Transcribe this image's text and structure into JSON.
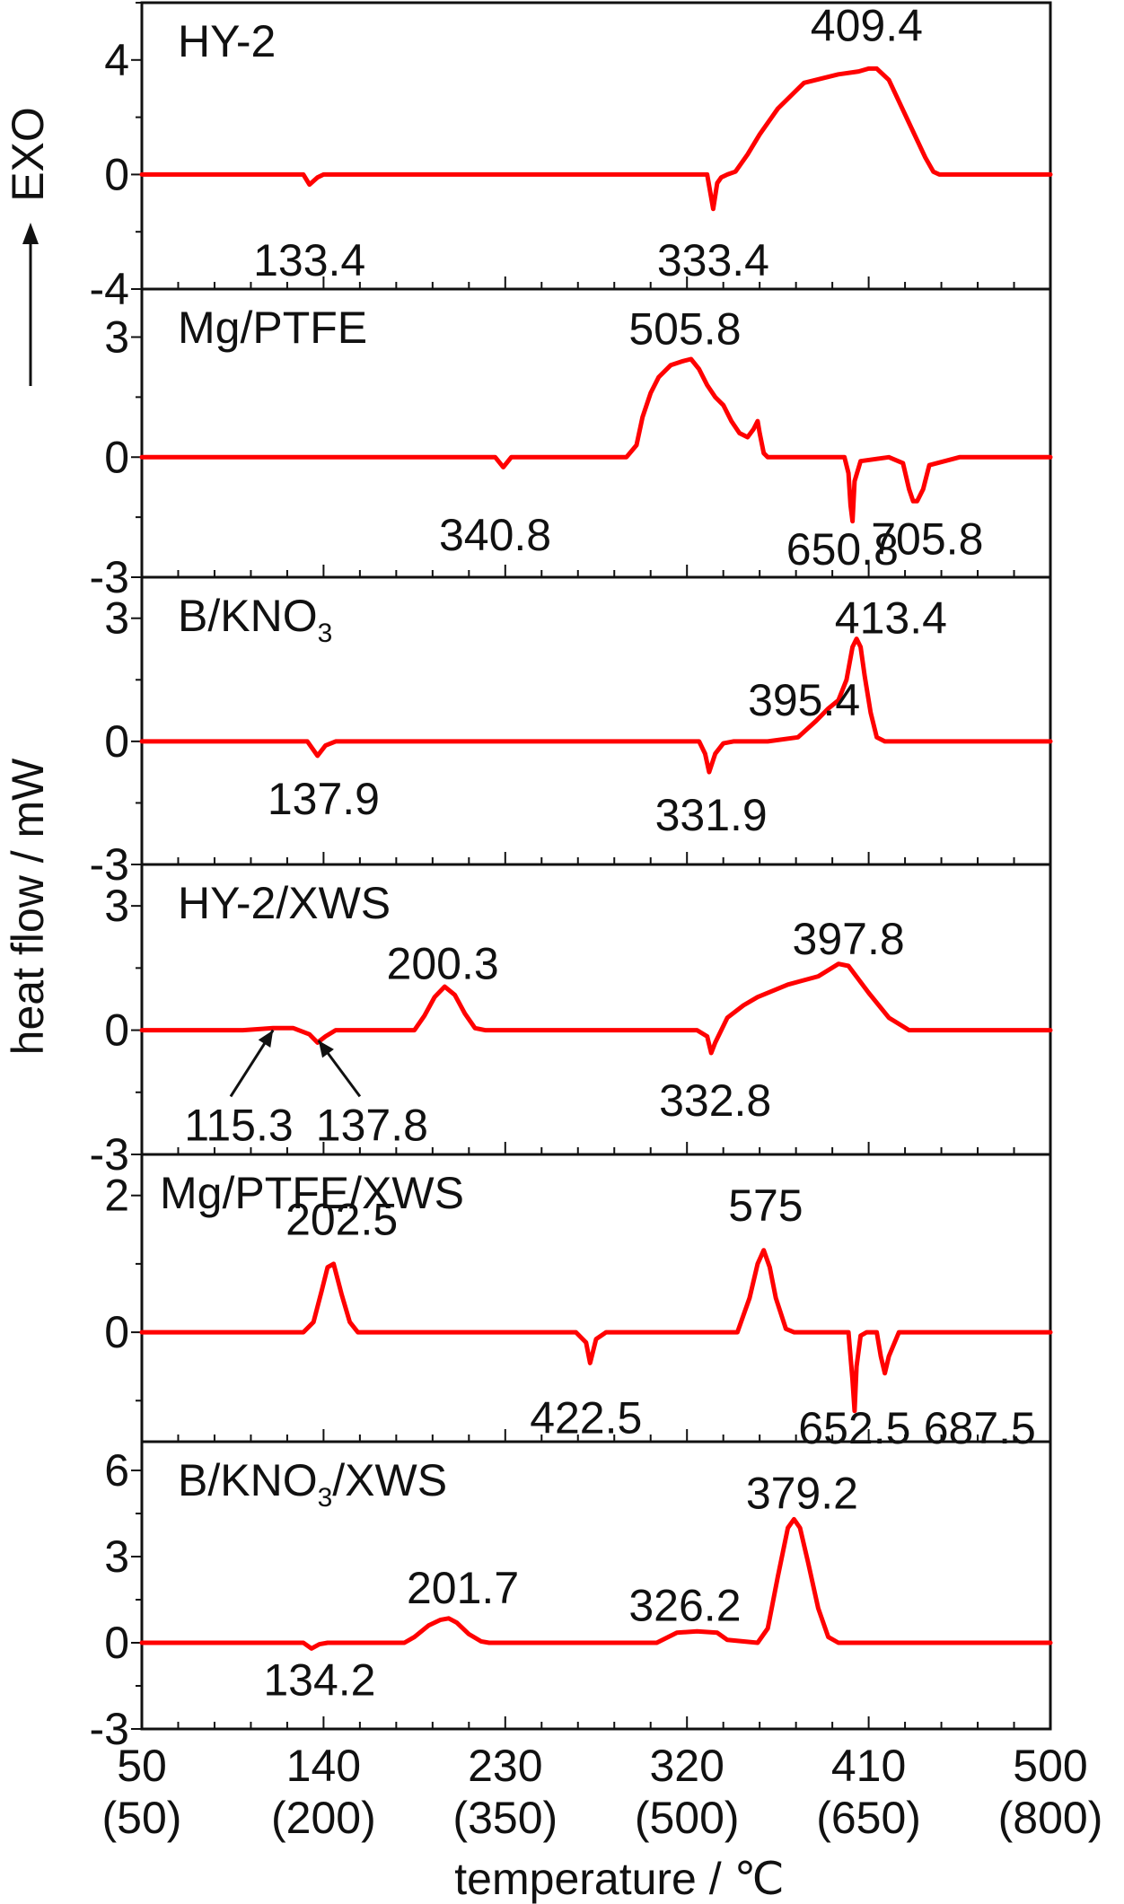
{
  "chart_data": {
    "type": "line",
    "xlabel": "temperature / ℃",
    "ylabel": "heat flow / mW",
    "y_annotation": "EXO",
    "x_ticks": [
      {
        "top": "50",
        "bottom": "(50)"
      },
      {
        "top": "140",
        "bottom": "(200)"
      },
      {
        "top": "230",
        "bottom": "(350)"
      },
      {
        "top": "320",
        "bottom": "(500)"
      },
      {
        "top": "410",
        "bottom": "(650)"
      },
      {
        "top": "500",
        "bottom": "(800)"
      }
    ],
    "xlim": [
      50,
      500
    ],
    "grid": false,
    "line_color": "#ff0000",
    "panels": [
      {
        "name": "HY-2",
        "ylim": [
          -4,
          6
        ],
        "yticks": [
          "4",
          "0",
          "-4"
        ],
        "ytick_values": [
          4,
          0,
          -4
        ],
        "series": {
          "x": [
            50,
            130,
            133,
            137,
            140,
            180,
            250,
            300,
            320,
            327,
            330,
            333,
            335,
            337,
            340,
            344,
            346,
            350,
            356,
            365,
            378,
            395,
            405,
            410,
            414,
            420,
            430,
            438,
            442,
            445,
            460,
            500
          ],
          "y": [
            0,
            0,
            -0.35,
            -0.1,
            0,
            0,
            0,
            0,
            0,
            0,
            0,
            -1.2,
            -0.3,
            -0.1,
            0,
            0.1,
            0.3,
            0.7,
            1.4,
            2.3,
            3.2,
            3.5,
            3.6,
            3.7,
            3.7,
            3.3,
            1.8,
            0.6,
            0.1,
            0,
            0,
            0
          ]
        },
        "labels": [
          {
            "text": "133.4",
            "x": 133,
            "y": -3.0
          },
          {
            "text": "333.4",
            "x": 333,
            "y": -3.0
          },
          {
            "text": "409.4",
            "x": 409,
            "y": 5.2
          }
        ]
      },
      {
        "name": "Mg/PTFE",
        "ylim": [
          -3,
          4.2
        ],
        "yticks": [
          "3",
          "0",
          "-3"
        ],
        "ytick_values": [
          3,
          0,
          -3
        ],
        "series": {
          "x": [
            50,
            180,
            225,
            229,
            233,
            240,
            290,
            295,
            298,
            302,
            306,
            312,
            318,
            322,
            326,
            330,
            334,
            338,
            342,
            346,
            350,
            353,
            355,
            356,
            358,
            360,
            398,
            400,
            401,
            402,
            403,
            406,
            420,
            427,
            430,
            432,
            434,
            437,
            440,
            455,
            500
          ],
          "y": [
            0,
            0,
            0,
            -0.25,
            0,
            0,
            0,
            0.3,
            1.0,
            1.6,
            2.0,
            2.3,
            2.4,
            2.45,
            2.2,
            1.8,
            1.5,
            1.3,
            0.9,
            0.6,
            0.5,
            0.7,
            0.9,
            0.6,
            0.1,
            0,
            0,
            -0.4,
            -1.2,
            -1.6,
            -0.6,
            -0.1,
            0,
            -0.15,
            -0.8,
            -1.1,
            -1.1,
            -0.8,
            -0.2,
            0,
            0
          ]
        },
        "labels": [
          {
            "text": "340.8",
            "x": 225,
            "y": -1.95
          },
          {
            "text": "505.8",
            "x": 319,
            "y": 3.2
          },
          {
            "text": "650.8",
            "x": 397,
            "y": -2.3
          },
          {
            "text": "705.8",
            "x": 439,
            "y": -2.05
          }
        ]
      },
      {
        "name": "B/KNO",
        "name_subscript": "3",
        "ylim": [
          -3,
          4
        ],
        "yticks": [
          "3",
          "0",
          "-3"
        ],
        "ytick_values": [
          3,
          0,
          -3
        ],
        "series": {
          "x": [
            50,
            132,
            137,
            141,
            146,
            200,
            300,
            320,
            326,
            329,
            331,
            334,
            338,
            343,
            360,
            375,
            384,
            390,
            395,
            399,
            402,
            404,
            406,
            408,
            411,
            414,
            418,
            440,
            500
          ],
          "y": [
            0,
            0,
            -0.35,
            -0.1,
            0,
            0,
            0,
            0,
            0,
            -0.3,
            -0.75,
            -0.3,
            -0.05,
            0,
            0,
            0.1,
            0.5,
            0.8,
            1.0,
            1.5,
            2.3,
            2.5,
            2.3,
            1.6,
            0.7,
            0.1,
            0,
            0,
            0
          ]
        },
        "labels": [
          {
            "text": "137.9",
            "x": 140,
            "y": -1.4
          },
          {
            "text": "331.9",
            "x": 332,
            "y": -1.8
          },
          {
            "text": "395.4",
            "x": 378,
            "y": 1.0
          },
          {
            "text": "413.4",
            "x": 421,
            "y": 3.0
          }
        ]
      },
      {
        "name": "HY-2/XWS",
        "ylim": [
          -3,
          4
        ],
        "yticks": [
          "3",
          "0",
          "-3"
        ],
        "ytick_values": [
          3,
          0,
          -3
        ],
        "series": {
          "x": [
            50,
            100,
            115,
            125,
            133,
            137,
            141,
            146,
            185,
            190,
            195,
            200,
            205,
            210,
            215,
            220,
            300,
            325,
            330,
            332,
            334,
            340,
            348,
            355,
            370,
            385,
            395,
            400,
            410,
            420,
            430,
            500
          ],
          "y": [
            0,
            0,
            0.05,
            0.05,
            -0.1,
            -0.3,
            -0.15,
            0,
            0,
            0.35,
            0.8,
            1.05,
            0.85,
            0.4,
            0.05,
            0,
            0,
            0,
            -0.15,
            -0.55,
            -0.3,
            0.3,
            0.6,
            0.8,
            1.1,
            1.3,
            1.6,
            1.55,
            0.9,
            0.3,
            0,
            0
          ]
        },
        "labels": [
          {
            "text": "115.3",
            "x": 98,
            "y": -2.3
          },
          {
            "text": "137.8",
            "x": 164,
            "y": -2.3
          },
          {
            "text": "200.3",
            "x": 199,
            "y": 1.6
          },
          {
            "text": "332.8",
            "x": 334,
            "y": -1.7
          },
          {
            "text": "397.8",
            "x": 400,
            "y": 2.2
          }
        ],
        "arrows": [
          {
            "from": [
              94,
              -1.6
            ],
            "to": [
              115,
              0.0
            ]
          },
          {
            "from": [
              158,
              -1.6
            ],
            "to": [
              137.5,
              -0.25
            ]
          }
        ]
      },
      {
        "name": "Mg/PTFE/XWS",
        "ylim": [
          -1.6,
          2.6
        ],
        "yticks": [
          "2",
          "0"
        ],
        "ytick_values": [
          2,
          0
        ],
        "series": {
          "x": [
            50,
            130,
            135,
            139,
            142,
            145,
            149,
            153,
            157,
            160,
            265,
            270,
            272,
            275,
            280,
            345,
            351,
            355,
            358,
            361,
            364,
            369,
            373,
            400,
            402,
            403,
            404,
            406,
            409,
            414,
            416,
            418,
            420,
            425,
            500
          ],
          "y": [
            0,
            0,
            0.15,
            0.6,
            0.95,
            1.0,
            0.55,
            0.15,
            0,
            0,
            0,
            -0.15,
            -0.45,
            -0.1,
            0,
            0,
            0.5,
            1.0,
            1.2,
            0.95,
            0.5,
            0.05,
            0,
            0,
            -0.7,
            -1.15,
            -0.5,
            -0.05,
            0,
            0,
            -0.35,
            -0.6,
            -0.35,
            0,
            0
          ]
        },
        "labels": [
          {
            "text": "202.5",
            "x": 149,
            "y": 1.65
          },
          {
            "text": "575",
            "x": 359,
            "y": 1.85
          },
          {
            "text": "422.5",
            "x": 270,
            "y": -1.25
          },
          {
            "text": "652.5",
            "x": 403,
            "y": -1.4
          },
          {
            "text": "687.5",
            "x": 465,
            "y": -1.4
          }
        ]
      },
      {
        "name": "B/KNO",
        "name_subscript": "3",
        "name_suffix": "/XWS",
        "ylim": [
          -3,
          7
        ],
        "yticks": [
          "6",
          "3",
          "0",
          "-3"
        ],
        "ytick_values": [
          6,
          3,
          0,
          -3
        ],
        "series": {
          "x": [
            50,
            130,
            134,
            138,
            142,
            180,
            185,
            192,
            198,
            202,
            206,
            212,
            218,
            222,
            290,
            305,
            315,
            325,
            335,
            340,
            355,
            360,
            365,
            370,
            373,
            376,
            380,
            385,
            390,
            395,
            400,
            410,
            500
          ],
          "y": [
            0,
            0,
            -0.2,
            -0.05,
            0,
            0,
            0.2,
            0.6,
            0.8,
            0.85,
            0.7,
            0.3,
            0.05,
            0,
            0,
            0,
            0.35,
            0.4,
            0.35,
            0.1,
            0,
            0.5,
            2.3,
            4.0,
            4.3,
            4.0,
            2.8,
            1.2,
            0.2,
            0,
            0,
            0,
            0
          ]
        },
        "labels": [
          {
            "text": "134.2",
            "x": 138,
            "y": -1.3
          },
          {
            "text": "201.7",
            "x": 209,
            "y": 1.9
          },
          {
            "text": "326.2",
            "x": 319,
            "y": 1.3
          },
          {
            "text": "379.2",
            "x": 377,
            "y": 5.2
          }
        ]
      }
    ]
  }
}
